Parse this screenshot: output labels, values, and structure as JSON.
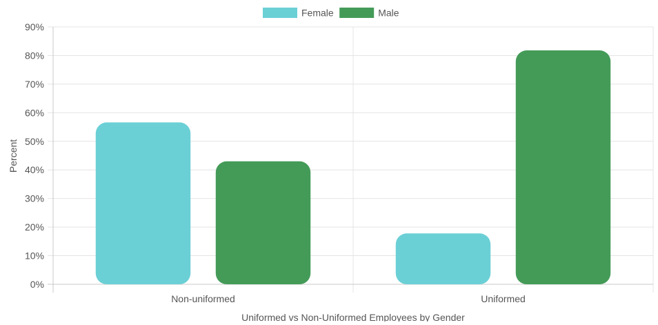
{
  "chart_data": {
    "type": "bar",
    "title": "",
    "xlabel": "Uniformed vs Non-Uniformed Employees by Gender",
    "ylabel": "Percent",
    "categories": [
      "Non-uniformed",
      "Uniformed"
    ],
    "series": [
      {
        "name": "Female",
        "values": [
          56.6,
          17.8
        ],
        "color": "#6bd0d6"
      },
      {
        "name": "Male",
        "values": [
          43.0,
          81.8
        ],
        "color": "#449b58"
      }
    ],
    "ylim": [
      0,
      90
    ],
    "yticks": [
      0,
      10,
      20,
      30,
      40,
      50,
      60,
      70,
      80,
      90
    ],
    "ytick_labels": [
      "0%",
      "10%",
      "20%",
      "30%",
      "40%",
      "50%",
      "60%",
      "70%",
      "80%",
      "90%"
    ],
    "grid": true,
    "legend_position": "top-center"
  }
}
